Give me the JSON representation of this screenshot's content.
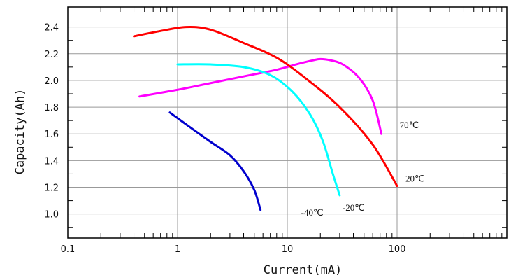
{
  "chart_data": {
    "type": "line",
    "title": "",
    "xlabel": "Current(mA)",
    "ylabel": "Capacity(Ah)",
    "xscale": "log",
    "xlim": [
      0.1,
      1000
    ],
    "ylim": [
      0.82,
      2.55
    ],
    "grid": true,
    "x_ticks": [
      "0.1",
      "1",
      "10",
      "100"
    ],
    "y_ticks": [
      "1.0",
      "1.2",
      "1.4",
      "1.6",
      "1.8",
      "2.0",
      "2.2",
      "2.4"
    ],
    "series": [
      {
        "name": "70℃",
        "color": "#ff00ff",
        "x": [
          0.45,
          1,
          2,
          4,
          8,
          12,
          17,
          20,
          25,
          32,
          45,
          60,
          72
        ],
        "y": [
          1.88,
          1.93,
          1.98,
          2.03,
          2.08,
          2.12,
          2.15,
          2.16,
          2.15,
          2.12,
          2.02,
          1.85,
          1.6
        ]
      },
      {
        "name": "20℃",
        "color": "#ff0000",
        "x": [
          0.4,
          0.7,
          1.2,
          2,
          4,
          8,
          15,
          30,
          60,
          100
        ],
        "y": [
          2.33,
          2.37,
          2.4,
          2.38,
          2.28,
          2.17,
          2.01,
          1.8,
          1.52,
          1.21
        ]
      },
      {
        "name": "-20℃",
        "color": "#00ffff",
        "x": [
          1,
          2,
          4,
          7,
          11,
          16,
          21,
          26,
          30
        ],
        "y": [
          2.12,
          2.12,
          2.1,
          2.04,
          1.92,
          1.75,
          1.55,
          1.3,
          1.14
        ]
      },
      {
        "name": "-40℃",
        "color": "#0000cd",
        "x": [
          0.85,
          1.3,
          2,
          3,
          4,
          5,
          5.7
        ],
        "y": [
          1.76,
          1.65,
          1.54,
          1.44,
          1.32,
          1.18,
          1.03
        ]
      }
    ]
  }
}
